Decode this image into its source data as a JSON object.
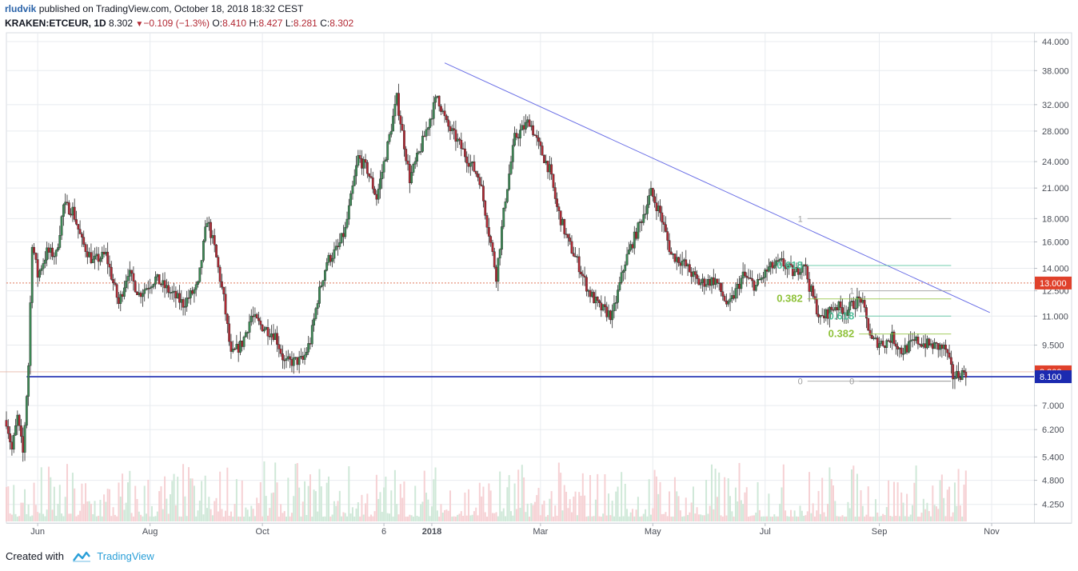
{
  "header": {
    "user": "rludvik",
    "published": " published on TradingView.com, October 18, 2018 18:32 CEST",
    "symbol": "KRAKEN:ETCEUR, 1D",
    "last": "8.302",
    "change": "−0.109 (−1.3%)",
    "o_label": "O:",
    "o": "8.410",
    "h_label": "H:",
    "h": "8.427",
    "l_label": "L:",
    "l": "8.281",
    "c_label": "C:",
    "c": "8.302"
  },
  "footer": {
    "created_with": "Created with",
    "brand": "TradingView"
  },
  "colors": {
    "up": "#3c8a55",
    "down": "#b22833",
    "trendline": "#6a6fe6",
    "support": "#1b2ab0",
    "resistance": "#e07a5f",
    "fib_green": "#8fc23a",
    "fib_teal": "#4fbf9a",
    "grid": "#e8ebef"
  },
  "chart_data": {
    "type": "candlestick",
    "scale": "log",
    "ylim": [
      3.9,
      46.0
    ],
    "y_ticks": [
      "44.000",
      "38.000",
      "32.000",
      "28.000",
      "24.000",
      "21.000",
      "18.000",
      "16.000",
      "14.000",
      "12.500",
      "11.000",
      "9.500",
      "8.302",
      "8.100",
      "7.000",
      "6.200",
      "5.400",
      "4.800",
      "4.250"
    ],
    "x_ticks": [
      "Jun",
      "Aug",
      "Oct",
      "6",
      "2018",
      "Mar",
      "May",
      "Jul",
      "Sep",
      "Nov"
    ],
    "x_range": [
      "2017-05-15",
      "2018-11-24"
    ],
    "price_labels": [
      {
        "value": 13.0,
        "text": "13.000",
        "color": "#e0412b"
      },
      {
        "value": 8.302,
        "text": "8.302",
        "color": "#e0412b"
      },
      {
        "value": 8.1,
        "text": "8.100",
        "color": "#1b2ab0"
      }
    ],
    "horizontal_lines": [
      {
        "name": "resistance",
        "value": 13.0,
        "style": "dotted"
      },
      {
        "name": "support",
        "value": 8.1,
        "style": "solid",
        "from": "2017-05-26"
      },
      {
        "name": "last-price",
        "value": 8.302,
        "style": "thin"
      }
    ],
    "trendline": {
      "from": [
        "2018-01-08",
        39.5
      ],
      "to": [
        "2018-10-31",
        11.2
      ]
    },
    "fib_retracements": [
      {
        "from": [
          "2018-07-24",
          18.0
        ],
        "to": [
          "2018-10-10",
          8.2
        ],
        "levels": [
          {
            "ratio": "1",
            "value": 18.0,
            "color": "#9e9e9e"
          },
          {
            "ratio": "0.618",
            "value": 14.2,
            "color": "#4fbf9a"
          },
          {
            "ratio": "0.382",
            "value": 12.0,
            "color": "#8fc23a"
          },
          {
            "ratio": "0",
            "value": 7.92,
            "color": "#9e9e9e"
          }
        ]
      },
      {
        "from": [
          "2018-08-21",
          12.5
        ],
        "to": [
          "2018-10-10",
          8.2
        ],
        "levels": [
          {
            "ratio": "1",
            "value": 12.5,
            "color": "#9e9e9e"
          },
          {
            "ratio": "0.618",
            "value": 11.0,
            "color": "#4fbf9a"
          },
          {
            "ratio": "0.382",
            "value": 10.05,
            "color": "#8fc23a"
          },
          {
            "ratio": "0",
            "value": 7.92,
            "color": "#9e9e9e"
          }
        ]
      }
    ],
    "series": [
      {
        "name": "ETCEUR",
        "anchors": [
          [
            "2017-05-15",
            6.5
          ],
          [
            "2017-05-18",
            5.6
          ],
          [
            "2017-05-21",
            6.6
          ],
          [
            "2017-05-24",
            5.5
          ],
          [
            "2017-05-27",
            8.6
          ],
          [
            "2017-05-29",
            16.0
          ],
          [
            "2017-06-01",
            13.5
          ],
          [
            "2017-06-06",
            15.2
          ],
          [
            "2017-06-11",
            15.0
          ],
          [
            "2017-06-15",
            19.2
          ],
          [
            "2017-06-20",
            18.8
          ],
          [
            "2017-06-25",
            16.0
          ],
          [
            "2017-07-01",
            14.5
          ],
          [
            "2017-07-08",
            15.0
          ],
          [
            "2017-07-15",
            11.7
          ],
          [
            "2017-07-20",
            13.8
          ],
          [
            "2017-07-26",
            12.3
          ],
          [
            "2017-08-04",
            13.3
          ],
          [
            "2017-08-12",
            12.4
          ],
          [
            "2017-08-19",
            11.7
          ],
          [
            "2017-08-27",
            12.8
          ],
          [
            "2017-09-01",
            18.0
          ],
          [
            "2017-09-05",
            15.5
          ],
          [
            "2017-09-10",
            12.0
          ],
          [
            "2017-09-14",
            9.0
          ],
          [
            "2017-09-20",
            9.6
          ],
          [
            "2017-09-25",
            11.0
          ],
          [
            "2017-09-30",
            10.5
          ],
          [
            "2017-10-08",
            10.0
          ],
          [
            "2017-10-13",
            8.7
          ],
          [
            "2017-10-23",
            8.8
          ],
          [
            "2017-10-27",
            9.7
          ],
          [
            "2017-10-31",
            12.0
          ],
          [
            "2017-11-05",
            14.5
          ],
          [
            "2017-11-11",
            15.5
          ],
          [
            "2017-11-15",
            17.0
          ],
          [
            "2017-11-22",
            24.5
          ],
          [
            "2017-11-27",
            23.0
          ],
          [
            "2017-12-02",
            20.0
          ],
          [
            "2017-12-08",
            26.0
          ],
          [
            "2017-12-13",
            33.0
          ],
          [
            "2017-12-20",
            22.0
          ],
          [
            "2017-12-25",
            25.0
          ],
          [
            "2017-12-30",
            29.0
          ],
          [
            "2018-01-04",
            33.5
          ],
          [
            "2018-01-09",
            29.0
          ],
          [
            "2018-01-14",
            27.0
          ],
          [
            "2018-01-20",
            24.5
          ],
          [
            "2018-01-27",
            22.0
          ],
          [
            "2018-02-05",
            13.5
          ],
          [
            "2018-02-10",
            20.0
          ],
          [
            "2018-02-15",
            27.0
          ],
          [
            "2018-02-23",
            29.5
          ],
          [
            "2018-02-28",
            26.0
          ],
          [
            "2018-03-06",
            23.0
          ],
          [
            "2018-03-10",
            19.0
          ],
          [
            "2018-03-16",
            16.0
          ],
          [
            "2018-03-21",
            14.5
          ],
          [
            "2018-03-27",
            12.5
          ],
          [
            "2018-04-02",
            11.5
          ],
          [
            "2018-04-09",
            11.0
          ],
          [
            "2018-04-16",
            14.5
          ],
          [
            "2018-04-25",
            18.0
          ],
          [
            "2018-04-30",
            20.5
          ],
          [
            "2018-05-05",
            18.5
          ],
          [
            "2018-05-11",
            15.0
          ],
          [
            "2018-05-17",
            14.5
          ],
          [
            "2018-05-26",
            13.0
          ],
          [
            "2018-06-04",
            13.2
          ],
          [
            "2018-06-11",
            11.5
          ],
          [
            "2018-06-19",
            13.5
          ],
          [
            "2018-06-26",
            12.8
          ],
          [
            "2018-07-03",
            14.0
          ],
          [
            "2018-07-10",
            14.4
          ],
          [
            "2018-07-17",
            13.6
          ],
          [
            "2018-07-22",
            14.5
          ],
          [
            "2018-07-25",
            12.8
          ],
          [
            "2018-07-31",
            10.8
          ],
          [
            "2018-08-08",
            11.6
          ],
          [
            "2018-08-14",
            11.3
          ],
          [
            "2018-08-19",
            11.8
          ],
          [
            "2018-08-22",
            12.0
          ],
          [
            "2018-08-28",
            9.7
          ],
          [
            "2018-09-04",
            9.6
          ],
          [
            "2018-09-08",
            9.9
          ],
          [
            "2018-09-13",
            9.2
          ],
          [
            "2018-09-21",
            9.7
          ],
          [
            "2018-09-28",
            9.5
          ],
          [
            "2018-10-04",
            9.4
          ],
          [
            "2018-10-07",
            9.3
          ],
          [
            "2018-10-11",
            8.1
          ],
          [
            "2018-10-14",
            8.2
          ],
          [
            "2018-10-18",
            8.3
          ]
        ]
      }
    ]
  }
}
